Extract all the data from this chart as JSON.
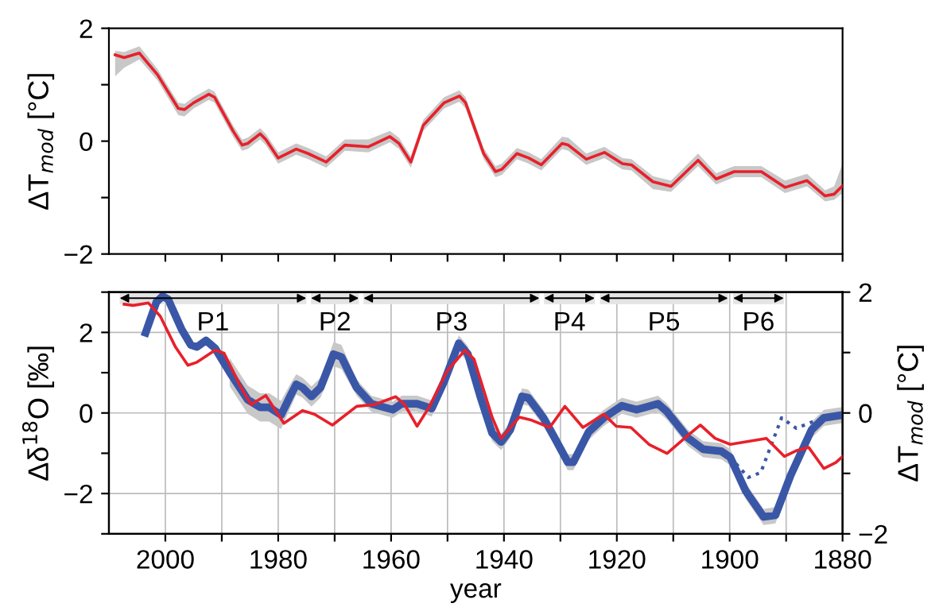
{
  "chart_data": [
    {
      "type": "line",
      "ylabel": "ΔT$_{mod}$ [°C]",
      "xlim": [
        2010,
        1880
      ],
      "ylim": [
        -2,
        2
      ],
      "xticks": [
        2000,
        {
          "value": 1990,
          "label": null
        },
        1980,
        {
          "value": 1970,
          "label": null
        },
        1960,
        {
          "value": 1950,
          "label": null
        },
        1940,
        {
          "value": 1930,
          "label": null
        },
        1920,
        {
          "value": 1910,
          "label": null
        },
        1900,
        {
          "value": 1890,
          "label": null
        },
        1880
      ],
      "yticks": [
        -2,
        {
          "value": -1,
          "label": null
        },
        0,
        {
          "value": 1,
          "label": null
        },
        2
      ],
      "tick_labels": "y",
      "grid": false,
      "series": [
        {
          "color": "#e8202a",
          "x": [
            2008.9,
            2007.3,
            2004.6,
            2001.4,
            1997.7,
            1996.6,
            1995,
            1992.3,
            1991.3,
            1988,
            1986.4,
            1985.4,
            1983.2,
            1982.2,
            1980,
            1976.8,
            1974.7,
            1971.5,
            1968.2,
            1964,
            1960.2,
            1958.6,
            1956.5,
            1954.3,
            1950.6,
            1947.9,
            1946.8,
            1943.6,
            1941.5,
            1940.4,
            1937.7,
            1935.6,
            1933.4,
            1929.7,
            1928.6,
            1925.4,
            1922.2,
            1919,
            1917.4,
            1913.6,
            1910.4,
            1905.6,
            1902.4,
            1899.2,
            1894.4,
            1890.2,
            1886.3,
            1883.1,
            1881.5,
            1880
          ],
          "values": [
            1.53,
            1.48,
            1.56,
            1.18,
            0.58,
            0.56,
            0.68,
            0.83,
            0.78,
            0.18,
            -0.07,
            -0.04,
            0.13,
            0.03,
            -0.3,
            -0.14,
            -0.22,
            -0.37,
            -0.07,
            -0.1,
            0.08,
            -0.04,
            -0.37,
            0.28,
            0.68,
            0.8,
            0.68,
            -0.22,
            -0.54,
            -0.5,
            -0.22,
            -0.3,
            -0.42,
            -0.04,
            -0.07,
            -0.32,
            -0.2,
            -0.4,
            -0.42,
            -0.72,
            -0.8,
            -0.34,
            -0.67,
            -0.54,
            -0.54,
            -0.82,
            -0.7,
            -0.97,
            -0.94,
            -0.79
          ],
          "lower": [
            1.15,
            1.3,
            1.45,
            1.08,
            0.46,
            0.44,
            0.58,
            0.73,
            0.68,
            0.08,
            -0.17,
            -0.14,
            0.03,
            -0.07,
            -0.4,
            -0.24,
            -0.32,
            -0.47,
            -0.17,
            -0.2,
            -0.02,
            -0.14,
            -0.47,
            0.18,
            0.58,
            0.7,
            0.58,
            -0.32,
            -0.64,
            -0.6,
            -0.32,
            -0.4,
            -0.52,
            -0.14,
            -0.17,
            -0.42,
            -0.3,
            -0.5,
            -0.52,
            -0.85,
            -0.9,
            -0.44,
            -0.77,
            -0.64,
            -0.64,
            -0.92,
            -0.8,
            -1.07,
            -1.04,
            -0.92
          ],
          "upper": [
            1.6,
            1.58,
            1.68,
            1.28,
            0.68,
            0.66,
            0.78,
            0.93,
            0.88,
            0.28,
            0.03,
            0.06,
            0.23,
            0.13,
            -0.2,
            -0.04,
            -0.12,
            -0.27,
            0.03,
            0.03,
            0.18,
            0.06,
            -0.27,
            0.38,
            0.78,
            0.9,
            0.78,
            -0.12,
            -0.44,
            -0.4,
            -0.12,
            -0.2,
            -0.32,
            0.08,
            0.06,
            -0.22,
            -0.1,
            -0.3,
            -0.32,
            -0.62,
            -0.7,
            -0.22,
            -0.57,
            -0.44,
            -0.44,
            -0.7,
            -0.58,
            -0.87,
            -0.8,
            -0.4
          ]
        }
      ]
    },
    {
      "type": "line",
      "xlabel": "year",
      "ylabel": "Δδ$^{18}$O [‰]",
      "y2label": "ΔT$_{mod}$ [°C]",
      "xlim": [
        2010,
        1880
      ],
      "ylim": [
        -3,
        3
      ],
      "y2lim": [
        -2,
        2
      ],
      "xticks": [
        2000,
        {
          "value": 1990,
          "label": null
        },
        1980,
        {
          "value": 1970,
          "label": null
        },
        1960,
        {
          "value": 1950,
          "label": null
        },
        1940,
        {
          "value": 1930,
          "label": null
        },
        1920,
        {
          "value": 1910,
          "label": null
        },
        1900,
        {
          "value": 1890,
          "label": null
        },
        1880
      ],
      "yticks": [
        {
          "value": -3,
          "label": null
        },
        -2,
        {
          "value": -1,
          "label": null
        },
        0,
        {
          "value": 1,
          "label": null
        },
        2,
        {
          "value": 3,
          "label": null
        }
      ],
      "y2ticks": [
        -2,
        {
          "value": -1,
          "label": null
        },
        0,
        {
          "value": 1,
          "label": null
        },
        2
      ],
      "grid": true,
      "bands": [
        {
          "axis": "x",
          "from": 2008.1,
          "to": 1975,
          "label": "P1"
        },
        {
          "axis": "x",
          "from": 1974.2,
          "to": 1965.7,
          "label": "P2"
        },
        {
          "axis": "x",
          "from": 1964.9,
          "to": 1933.7,
          "label": "P3"
        },
        {
          "axis": "x",
          "from": 1932.9,
          "to": 1923.9,
          "label": "P4"
        },
        {
          "axis": "x",
          "from": 1923,
          "to": 1900.3,
          "label": "P5"
        },
        {
          "axis": "x",
          "from": 1899.4,
          "to": 1890.4,
          "label": "P6"
        }
      ],
      "series": [
        {
          "color": "#e8202a",
          "axis": "y2",
          "x": [
            2007.3,
            2005.7,
            2003,
            2000.9,
            1998.2,
            1996,
            1994.4,
            1991.2,
            1989.6,
            1986.4,
            1984.8,
            1982.2,
            1979,
            1975.7,
            1973.6,
            1970.4,
            1966.1,
            1962.9,
            1959.2,
            1957.6,
            1955.4,
            1953.3,
            1950.1,
            1946.9,
            1945.3,
            1942.1,
            1940.5,
            1937.3,
            1935.1,
            1931.9,
            1929.2,
            1926,
            1922.3,
            1920.1,
            1917.5,
            1914.3,
            1911.1,
            1907.4,
            1905.2,
            1902.6,
            1899.9,
            1896.7,
            1893.5,
            1890.3,
            1888.1,
            1886,
            1883.3,
            1881.2,
            1880
          ],
          "values": [
            1.8,
            1.78,
            1.82,
            1.6,
            1.09,
            0.79,
            0.84,
            1.04,
            0.99,
            0.39,
            0.14,
            0.29,
            -0.17,
            0.04,
            -0.02,
            -0.2,
            0.11,
            0.14,
            0.27,
            0.14,
            -0.22,
            0.09,
            0.69,
            1.04,
            0.89,
            -0.07,
            -0.42,
            -0.07,
            -0.12,
            -0.24,
            0.11,
            -0.24,
            -0.02,
            -0.22,
            -0.24,
            -0.52,
            -0.67,
            -0.37,
            -0.2,
            -0.42,
            -0.52,
            -0.47,
            -0.42,
            -0.72,
            -0.62,
            -0.57,
            -0.92,
            -0.82,
            -0.72
          ]
        },
        {
          "color": "#3a57a7",
          "line_style": "dotted",
          "x": [
            1899.9,
            1896.7,
            1894.5,
            1890.8,
            1888.2,
            1885,
            1881.2
          ],
          "values": [
            -1.1,
            -1.6,
            -1.48,
            -0.12,
            -0.38,
            -0.2,
            -0.05
          ]
        },
        {
          "color": "#3a57a7",
          "x": [
            2003.5,
            2001.6,
            2000.5,
            1999.5,
            1997.1,
            1995.5,
            1994.4,
            1992.8,
            1991.2,
            1988.6,
            1985.4,
            1983.2,
            1981.6,
            1979.5,
            1977.9,
            1976.8,
            1975.7,
            1974.1,
            1972.5,
            1970.2,
            1968.8,
            1966.1,
            1963.5,
            1959.7,
            1958.1,
            1955.4,
            1952.8,
            1950.6,
            1948,
            1946.4,
            1944.2,
            1942.1,
            1940.5,
            1938.9,
            1936.8,
            1935.7,
            1933,
            1930.9,
            1928.7,
            1927.7,
            1925,
            1922.3,
            1919.1,
            1916.5,
            1912.7,
            1911.1,
            1907.4,
            1904.7,
            1901.5,
            1899.9,
            1897.2,
            1894,
            1891.9,
            1889.2,
            1885.5,
            1883.3,
            1880
          ],
          "values": [
            1.99,
            2.75,
            2.9,
            2.82,
            2.07,
            1.69,
            1.64,
            1.8,
            1.61,
            1.01,
            0.33,
            0.14,
            0.14,
            -0.05,
            0.41,
            0.71,
            0.63,
            0.41,
            0.63,
            1.46,
            1.39,
            0.63,
            0.23,
            0.08,
            0.23,
            0.23,
            0.11,
            0.78,
            1.73,
            1.46,
            0.41,
            -0.5,
            -0.72,
            -0.42,
            0.41,
            0.38,
            -0.12,
            -0.65,
            -1.22,
            -1.22,
            -0.47,
            -0.12,
            0.18,
            0.08,
            0.23,
            0.03,
            -0.62,
            -0.9,
            -0.95,
            -1.1,
            -1.93,
            -2.58,
            -2.54,
            -1.55,
            -0.42,
            -0.12,
            -0.05
          ],
          "lower": [
            null,
            null,
            null,
            null,
            null,
            null,
            null,
            null,
            null,
            0.66,
            -0.02,
            -0.21,
            -0.21,
            -0.4,
            0.11,
            0.46,
            0.38,
            0.16,
            0.38,
            1.16,
            1.09,
            0.43,
            0.03,
            -0.12,
            0.03,
            0.03,
            -0.09,
            0.58,
            1.53,
            1.26,
            0.21,
            -0.7,
            -0.92,
            -0.62,
            0.21,
            0.18,
            -0.32,
            -0.85,
            -1.42,
            -1.42,
            -0.67,
            -0.32,
            -0.02,
            -0.12,
            0.03,
            -0.17,
            -0.82,
            -1.1,
            -1.15,
            -1.3,
            -2.13,
            -2.78,
            -2.74,
            -1.75,
            -0.62,
            -0.32,
            -0.25
          ],
          "upper": [
            null,
            null,
            null,
            null,
            null,
            null,
            null,
            null,
            null,
            1.36,
            0.68,
            0.49,
            0.49,
            0.3,
            0.71,
            0.96,
            0.88,
            0.66,
            0.88,
            1.76,
            1.69,
            0.83,
            0.43,
            0.28,
            0.43,
            0.43,
            0.31,
            0.98,
            1.93,
            1.66,
            0.61,
            -0.3,
            -0.52,
            -0.22,
            0.61,
            0.58,
            0.08,
            -0.45,
            -1.02,
            -1.02,
            -0.27,
            0.08,
            0.38,
            0.28,
            0.43,
            0.23,
            -0.42,
            -0.7,
            -0.75,
            -0.9,
            -1.73,
            -2.38,
            -2.34,
            -1.35,
            -0.22,
            0.08,
            0.15
          ]
        }
      ]
    }
  ]
}
